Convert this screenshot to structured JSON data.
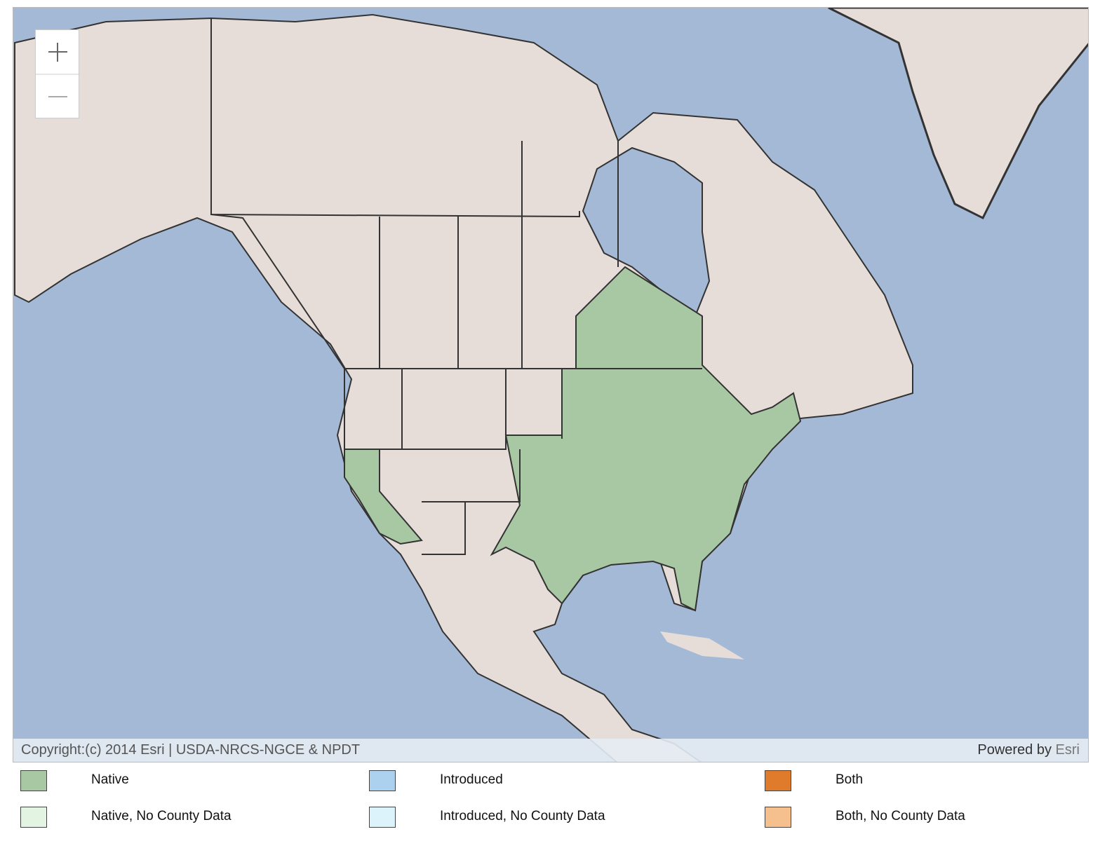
{
  "map": {
    "attribution": {
      "copyright": "Copyright:(c) 2014 Esri | USDA-NRCS-NGCE & NPDT",
      "powered_by": "Powered by",
      "provider": "Esri"
    },
    "legend": [
      {
        "label": "Native",
        "color": "#a8c8a4"
      },
      {
        "label": "Introduced",
        "color": "#acd1ee"
      },
      {
        "label": "Both",
        "color": "#e17b2c"
      },
      {
        "label": "Native, No County Data",
        "color": "#e4f4e2"
      },
      {
        "label": "Introduced, No County Data",
        "color": "#dcf3fb"
      },
      {
        "label": "Both, No County Data",
        "color": "#f5c08e"
      }
    ]
  }
}
